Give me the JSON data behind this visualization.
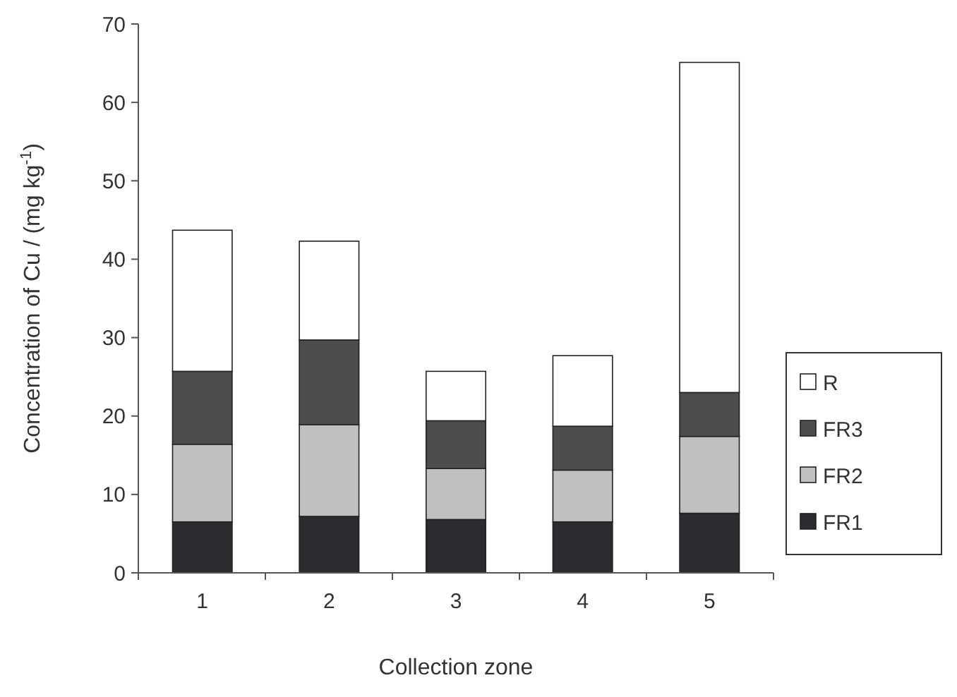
{
  "chart_data": {
    "type": "bar",
    "stacked": true,
    "xlabel": "Collection zone",
    "ylabel": "Concentration of Cu / (mg kg$^{-1}$)",
    "categories": [
      "1",
      "2",
      "3",
      "4",
      "5"
    ],
    "series": [
      {
        "name": "FR1",
        "color": "#2b2b30",
        "values": [
          6.5,
          7.2,
          6.8,
          6.5,
          7.6
        ]
      },
      {
        "name": "FR2",
        "color": "#c0c0c0",
        "values": [
          9.9,
          11.7,
          6.5,
          6.6,
          9.8
        ]
      },
      {
        "name": "FR3",
        "color": "#4d4d4d",
        "values": [
          9.3,
          10.8,
          6.1,
          5.6,
          5.6
        ]
      },
      {
        "name": "R",
        "color": "#ffffff",
        "values": [
          18.0,
          12.6,
          6.3,
          9.0,
          42.1
        ]
      }
    ],
    "ylim": [
      0,
      70
    ],
    "yticks": [
      0,
      10,
      20,
      30,
      40,
      50,
      60,
      70
    ],
    "legend": "right"
  }
}
